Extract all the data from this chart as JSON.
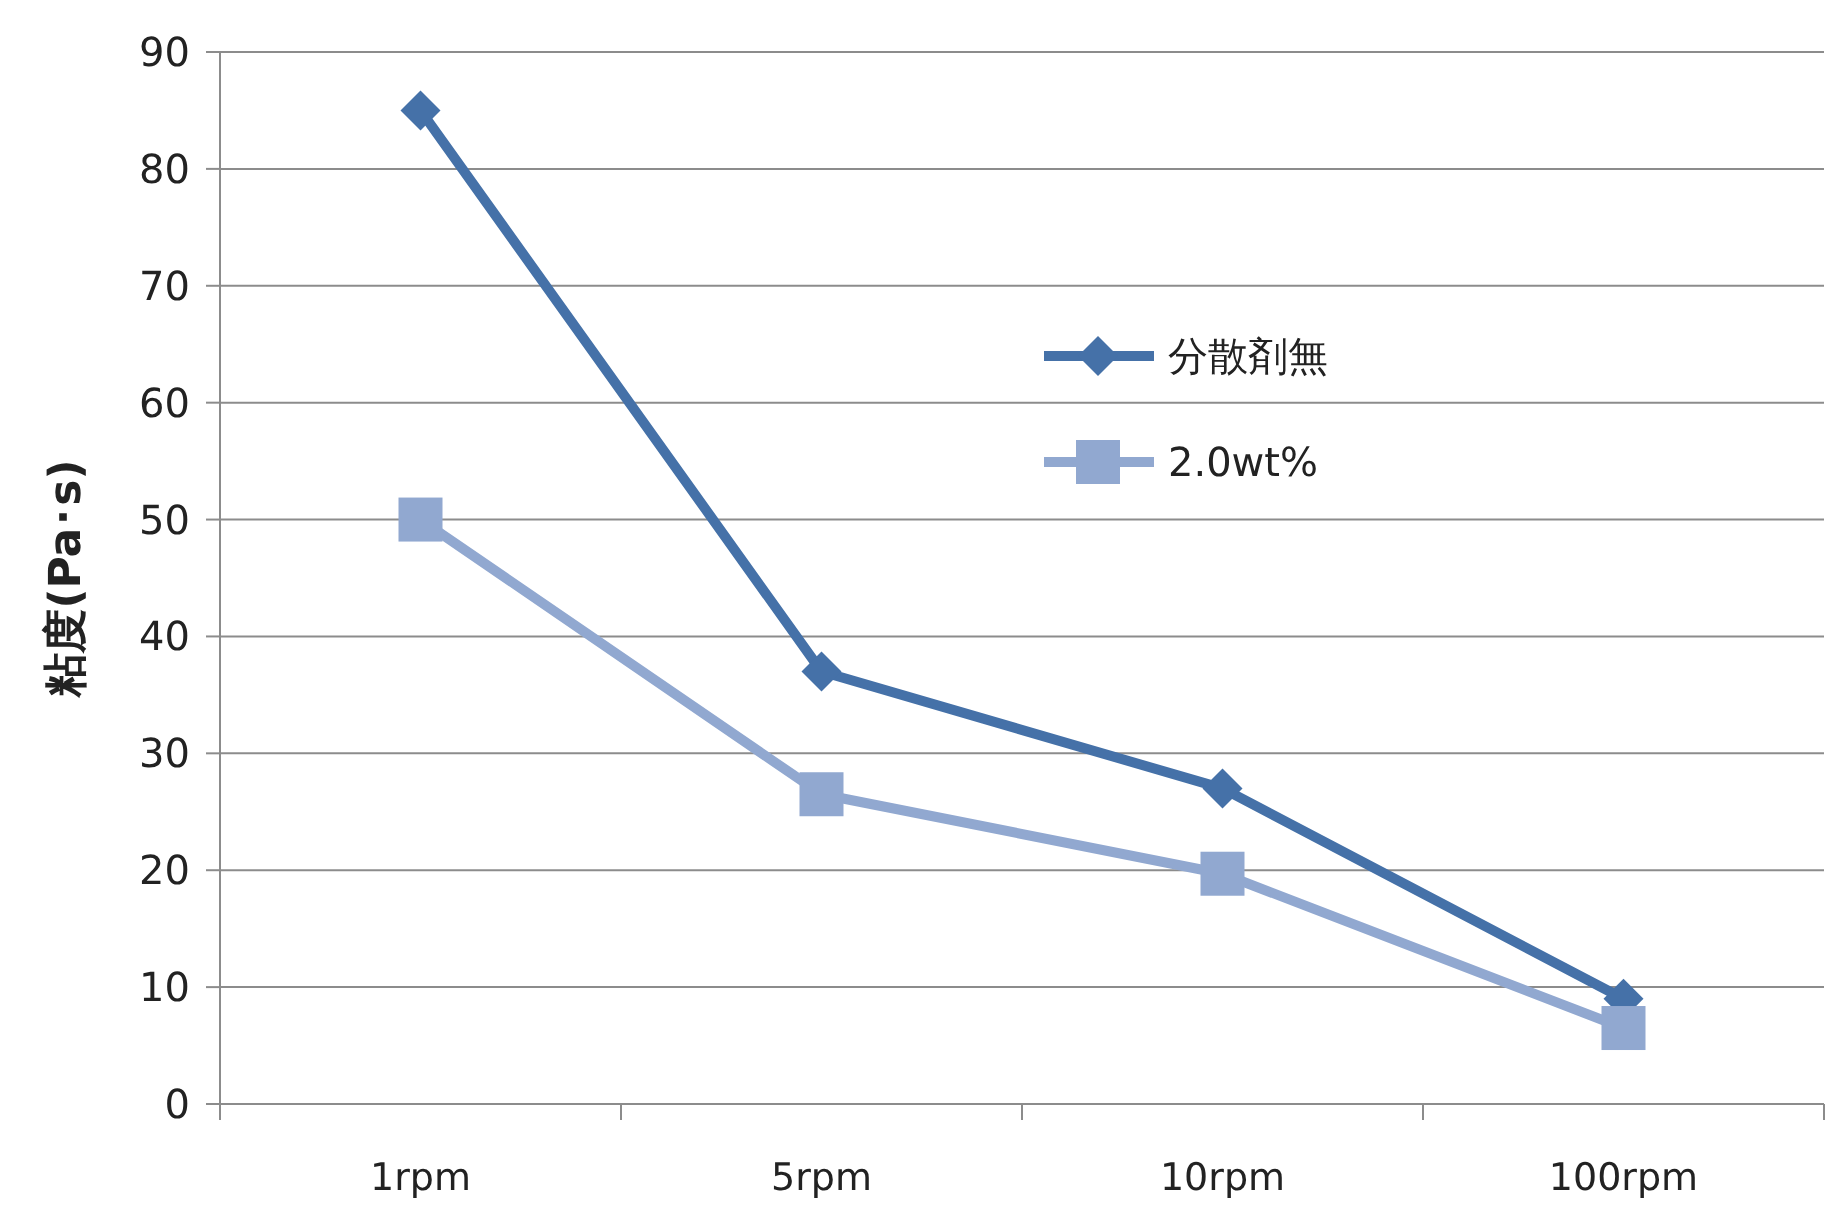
{
  "chart_data": {
    "type": "line",
    "ylabel": "粘度(Pa･s)",
    "categories": [
      "1rpm",
      "5rpm",
      "10rpm",
      "100rpm"
    ],
    "series": [
      {
        "name": "分散剤無",
        "color": "#4571a8",
        "marker": "diamond",
        "values": [
          85,
          37,
          27,
          9
        ]
      },
      {
        "name": "2.0wt%",
        "color": "#91a8d0",
        "marker": "square",
        "values": [
          50,
          26.5,
          19.7,
          6.5
        ]
      }
    ],
    "ylim": [
      0,
      90
    ],
    "yticks": [
      0,
      10,
      20,
      30,
      40,
      50,
      60,
      70,
      80,
      90
    ],
    "grid": "y",
    "legend": "top right"
  }
}
